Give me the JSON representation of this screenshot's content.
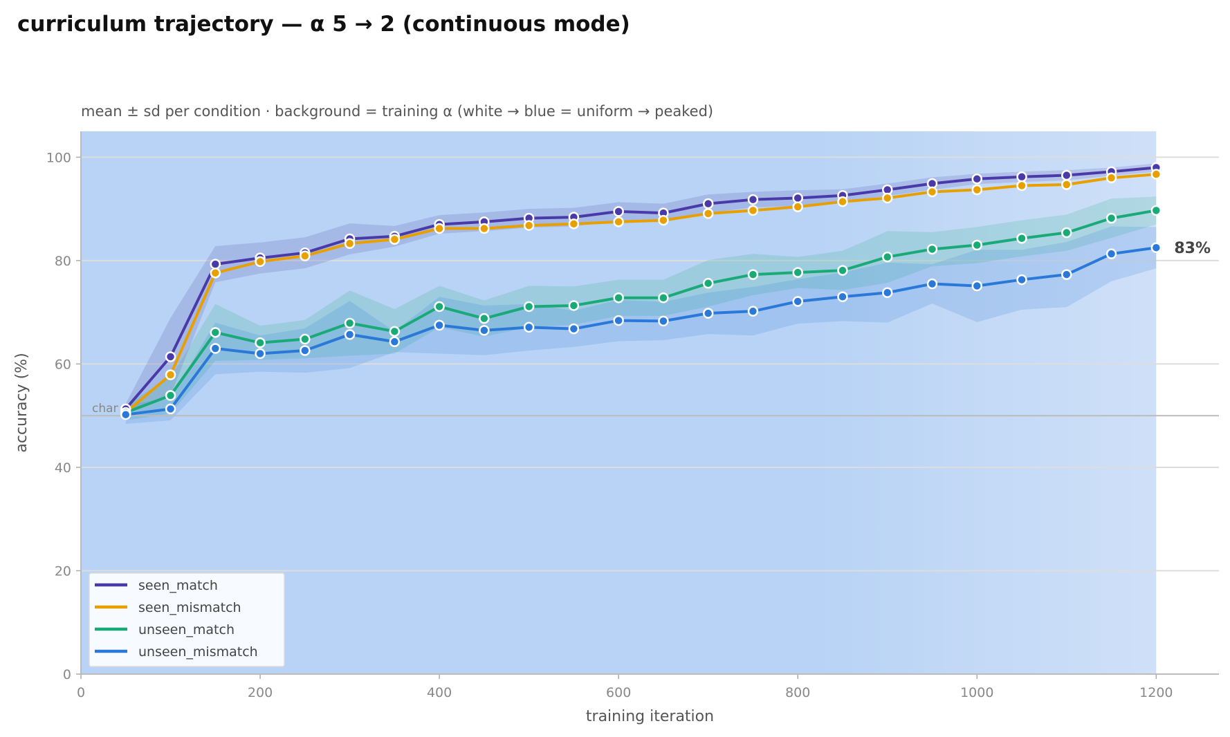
{
  "chart_data": {
    "type": "line",
    "title": "curriculum trajectory — α 5 → 2 (continuous mode)",
    "subtitle": "mean ± sd per condition · background = training α (white → blue = uniform → peaked)",
    "xlabel": "training iteration",
    "ylabel": "accuracy (%)",
    "xlim": [
      0,
      1270
    ],
    "ylim": [
      0,
      105
    ],
    "xticks": [
      0,
      200,
      400,
      600,
      800,
      1000,
      1200
    ],
    "yticks": [
      0,
      20,
      40,
      60,
      80,
      100
    ],
    "grid": "horizontal",
    "legend_position": "lower-left",
    "chance_level": 50,
    "chance_label": "chance",
    "end_label": "83%",
    "end_label_series": "unseen_mismatch",
    "background_gradient": {
      "start_color": "#b8d3f5",
      "end_color": "#cfe0f8",
      "fade_start_x": 820,
      "end_x": 1200
    },
    "x": [
      50,
      100,
      150,
      200,
      250,
      300,
      350,
      400,
      450,
      500,
      550,
      600,
      650,
      700,
      750,
      800,
      850,
      900,
      950,
      1000,
      1050,
      1100,
      1150,
      1200
    ],
    "series": [
      {
        "name": "seen_match",
        "color": "#4a3aa8",
        "values": [
          51.3,
          61.4,
          79.3,
          80.5,
          81.5,
          84.2,
          84.7,
          87.0,
          87.5,
          88.2,
          88.4,
          89.5,
          89.2,
          91.0,
          91.8,
          92.1,
          92.6,
          93.7,
          94.9,
          95.8,
          96.2,
          96.5,
          97.2,
          98.0
        ],
        "sd": [
          1.0,
          7.5,
          3.5,
          3.0,
          3.0,
          3.0,
          2.0,
          1.8,
          1.8,
          1.8,
          1.8,
          1.8,
          1.8,
          1.8,
          1.5,
          1.5,
          1.2,
          1.2,
          1.2,
          1.0,
          1.0,
          1.0,
          0.8,
          0.8
        ]
      },
      {
        "name": "seen_mismatch",
        "color": "#e8a000",
        "values": [
          50.6,
          57.9,
          77.6,
          79.8,
          80.9,
          83.3,
          84.1,
          86.2,
          86.2,
          86.8,
          87.1,
          87.5,
          87.8,
          89.1,
          89.7,
          90.4,
          91.4,
          92.1,
          93.3,
          93.7,
          94.5,
          94.7,
          96.0,
          96.7
        ]
      },
      {
        "name": "unseen_match",
        "color": "#1aaa78",
        "values": [
          50.6,
          53.9,
          66.1,
          64.1,
          64.8,
          67.9,
          66.3,
          71.1,
          68.8,
          71.1,
          71.3,
          72.8,
          72.8,
          75.6,
          77.3,
          77.7,
          78.1,
          80.7,
          82.2,
          83.0,
          84.3,
          85.4,
          88.2,
          89.7
        ],
        "sd": [
          1.5,
          3.5,
          5.5,
          3.3,
          3.7,
          6.3,
          4.3,
          4.0,
          3.5,
          4.0,
          3.7,
          3.5,
          3.5,
          4.5,
          4.0,
          3.0,
          3.8,
          5.0,
          3.3,
          3.5,
          3.5,
          3.5,
          3.8,
          2.7
        ]
      },
      {
        "name": "unseen_mismatch",
        "color": "#2a78d8",
        "values": [
          50.2,
          51.3,
          63.0,
          62.0,
          62.6,
          65.7,
          64.3,
          67.5,
          66.5,
          67.1,
          66.8,
          68.4,
          68.3,
          69.8,
          70.2,
          72.1,
          73.0,
          73.8,
          75.5,
          75.1,
          76.3,
          77.3,
          81.3,
          82.5
        ],
        "sd": [
          1.8,
          2.2,
          5.0,
          3.5,
          4.3,
          6.5,
          2.0,
          5.5,
          4.8,
          4.5,
          3.5,
          4.0,
          3.7,
          4.0,
          4.7,
          4.3,
          4.7,
          5.8,
          3.8,
          7.0,
          5.8,
          6.3,
          5.3,
          4.0
        ]
      }
    ]
  }
}
